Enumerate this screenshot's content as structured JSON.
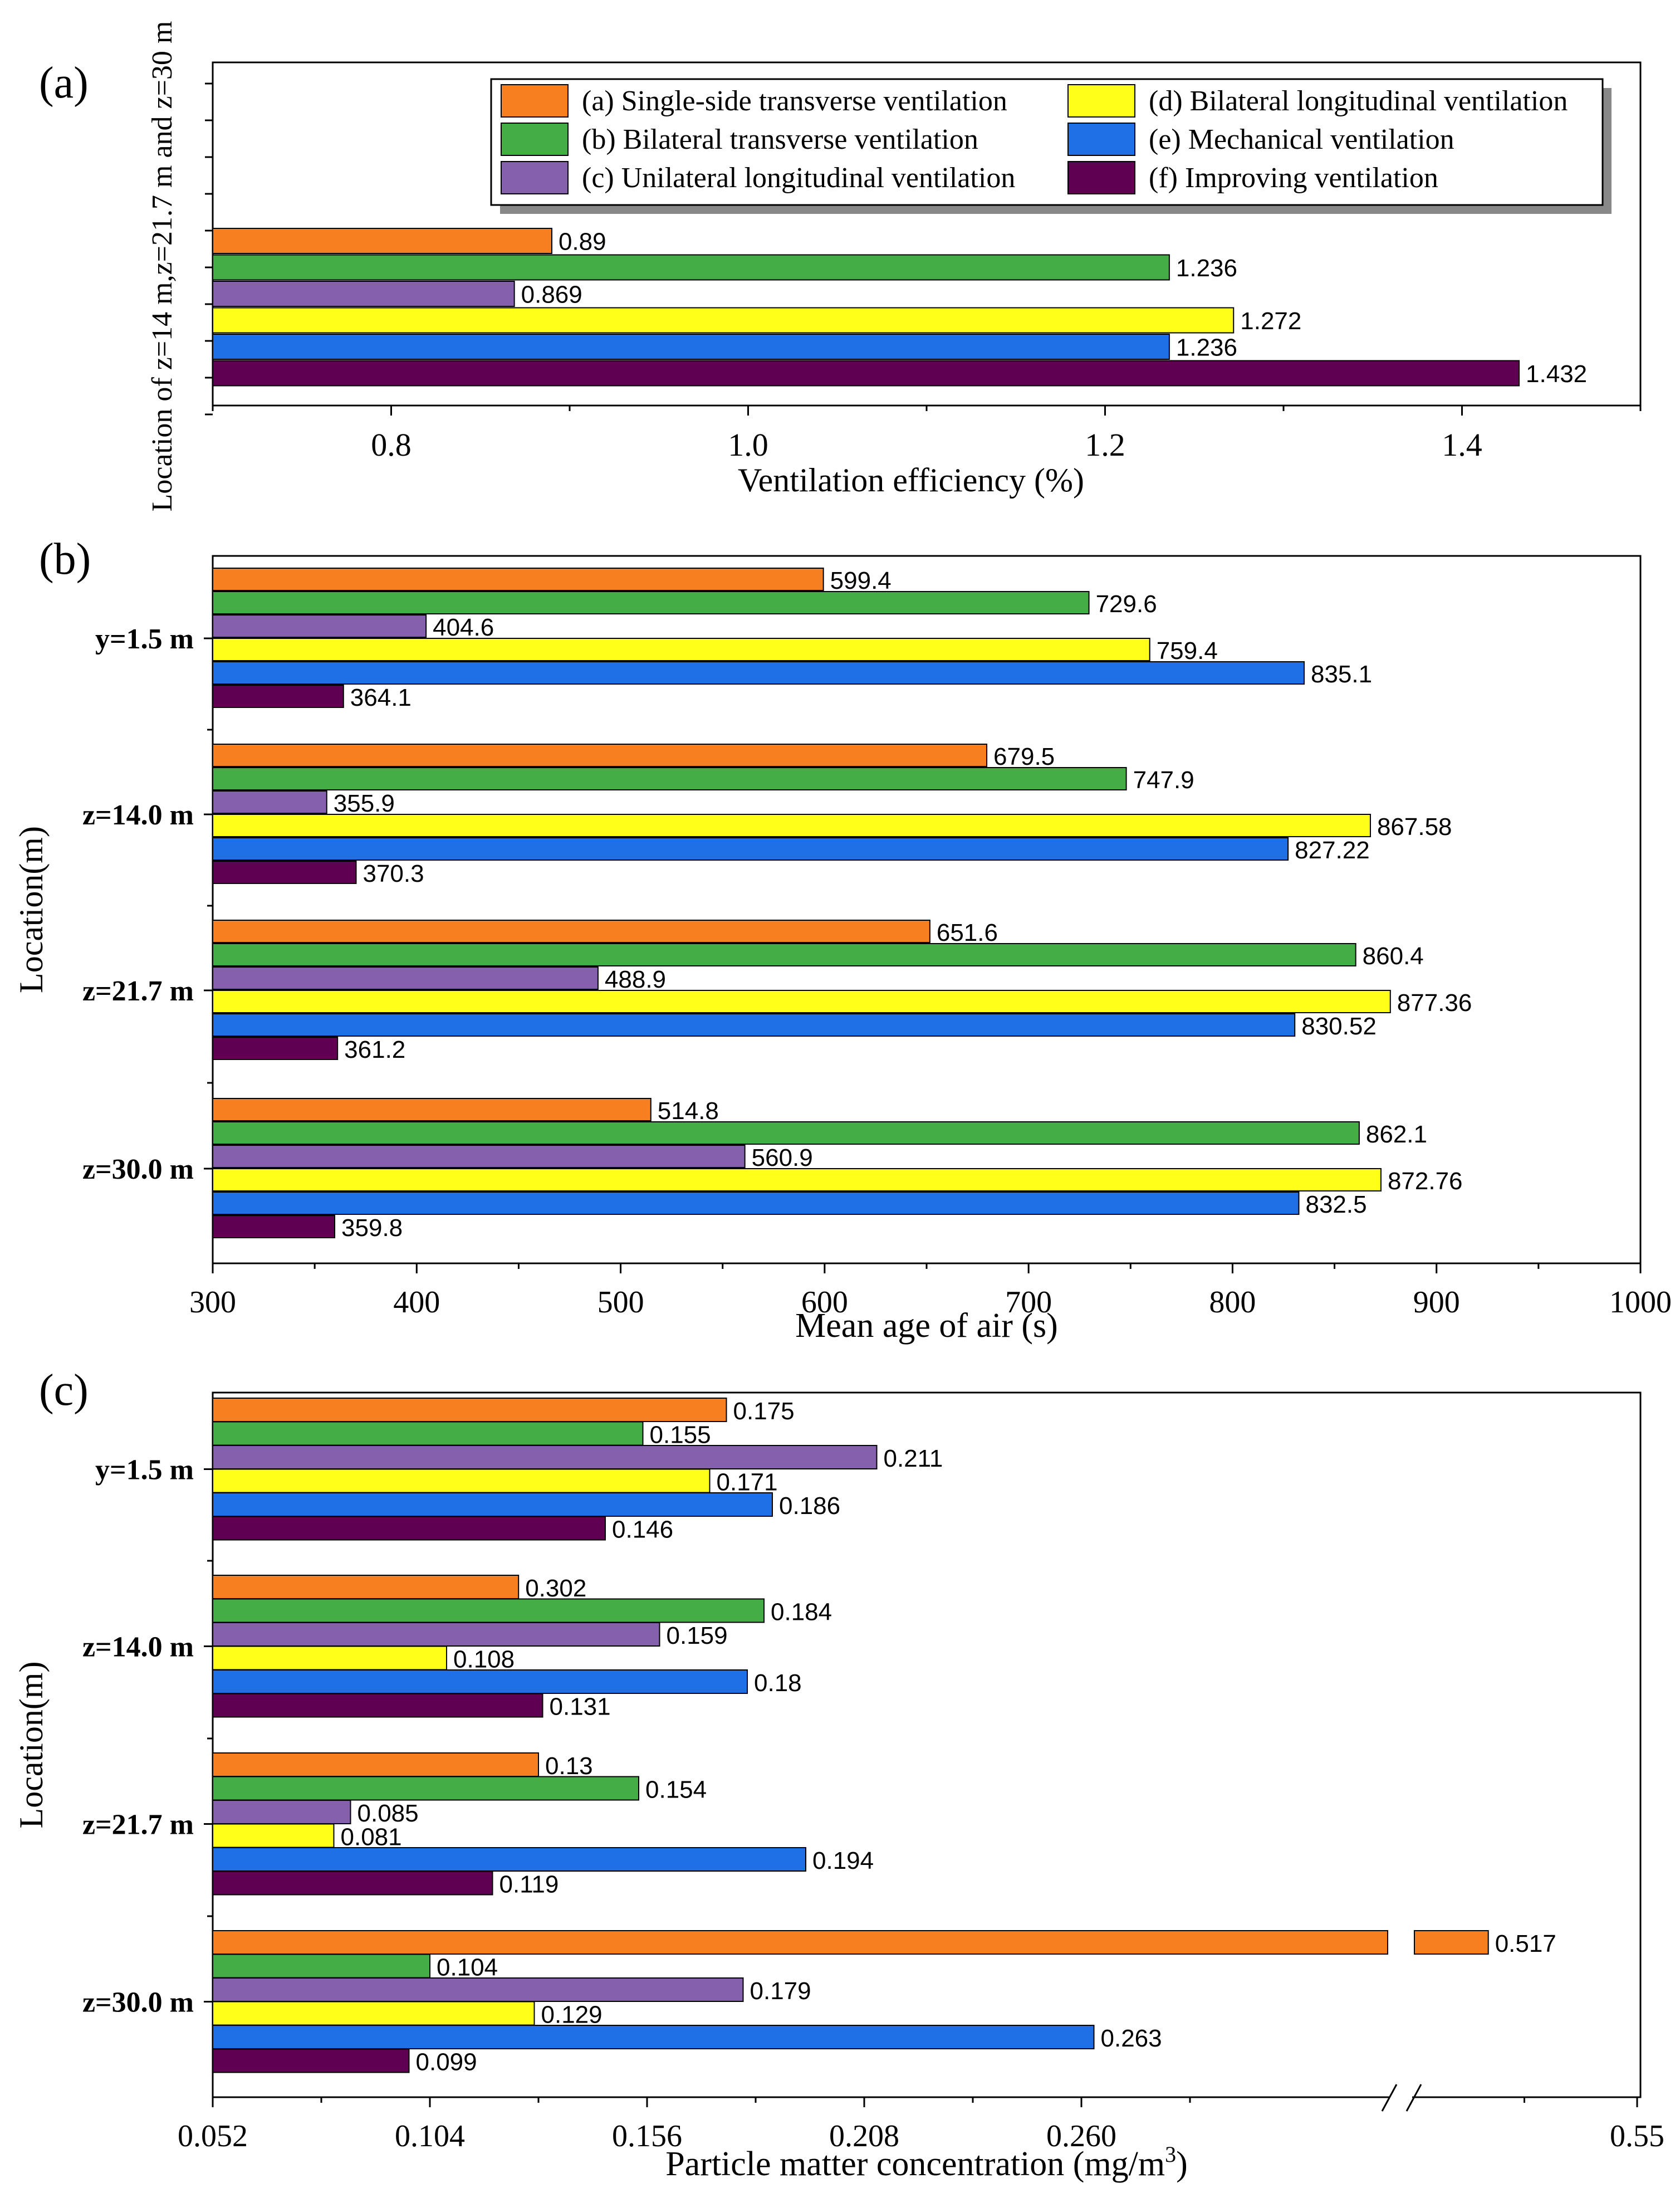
{
  "series_names": [
    "(a) Single-side transverse ventilation",
    "(b) Bilateral transverse ventilation",
    "(c) Unilateral longitudinal ventilation",
    "(d) Bilateral longitudinal ventilation",
    "(e) Mechanical ventilation",
    "(f) Improving ventilation"
  ],
  "colors": [
    "#f77f1f",
    "#45ad45",
    "#8460ad",
    "#ffff1a",
    "#1f6fe6",
    "#5f0052"
  ],
  "chart_data": [
    {
      "type": "bar",
      "orientation": "horizontal",
      "panel_label": "(a)",
      "xlabel": "Ventilation efficiency (%)",
      "ylabel": "Location of z=14 m,z=21.7 m and z=30 m",
      "xlim": [
        0.7,
        1.5
      ],
      "xticks": [
        "0.8",
        "1.0",
        "1.2",
        "1.4"
      ],
      "categories": [
        ""
      ],
      "series": [
        {
          "name": "(a) Single-side transverse ventilation",
          "values": [
            0.89
          ],
          "labels": [
            "0.89"
          ]
        },
        {
          "name": "(b) Bilateral transverse ventilation",
          "values": [
            1.236
          ],
          "labels": [
            "1.236"
          ]
        },
        {
          "name": "(c) Unilateral longitudinal ventilation",
          "values": [
            0.869
          ],
          "labels": [
            "0.869"
          ]
        },
        {
          "name": "(d) Bilateral longitudinal ventilation",
          "values": [
            1.272
          ],
          "labels": [
            "1.272"
          ]
        },
        {
          "name": "(e) Mechanical ventilation",
          "values": [
            1.236
          ],
          "labels": [
            "1.236"
          ]
        },
        {
          "name": "(f) Improving ventilation",
          "values": [
            1.432
          ],
          "labels": [
            "1.432"
          ]
        }
      ],
      "legend": "top-right"
    },
    {
      "type": "bar",
      "orientation": "horizontal",
      "panel_label": "(b)",
      "xlabel": "Mean age of air (s)",
      "ylabel": "Location(m)",
      "xlim": [
        300,
        1000
      ],
      "xticks": [
        "300",
        "400",
        "500",
        "600",
        "700",
        "800",
        "900",
        "1000"
      ],
      "categories": [
        "y=1.5 m",
        "z=14.0 m",
        "z=21.7 m",
        "z=30.0 m"
      ],
      "series": [
        {
          "name": "(a) Single-side transverse ventilation",
          "values": [
            599.4,
            679.5,
            651.6,
            514.8
          ],
          "labels": [
            "599.4",
            "679.5",
            "651.6",
            "514.8"
          ]
        },
        {
          "name": "(b) Bilateral transverse ventilation",
          "values": [
            729.6,
            747.9,
            860.4,
            862.1
          ],
          "labels": [
            "729.6",
            "747.9",
            "860.4",
            "862.1"
          ]
        },
        {
          "name": "(c) Unilateral longitudinal ventilation",
          "values": [
            404.6,
            355.9,
            488.9,
            560.9
          ],
          "labels": [
            "404.6",
            "355.9",
            "488.9",
            "560.9"
          ]
        },
        {
          "name": "(d) Bilateral longitudinal ventilation",
          "values": [
            759.4,
            867.58,
            877.36,
            872.76
          ],
          "labels": [
            "759.4",
            "867.58",
            "877.36",
            "872.76"
          ]
        },
        {
          "name": "(e) Mechanical ventilation",
          "values": [
            835.1,
            827.22,
            830.52,
            832.5
          ],
          "labels": [
            "835.1",
            "827.22",
            "830.52",
            "832.5"
          ]
        },
        {
          "name": "(f) Improving ventilation",
          "values": [
            364.1,
            370.3,
            361.2,
            359.8
          ],
          "labels": [
            "364.1",
            "370.3",
            "361.2",
            "359.8"
          ]
        }
      ]
    },
    {
      "type": "bar",
      "orientation": "horizontal",
      "panel_label": "(c)",
      "xlabel": "Particle matter concentration (mg/m",
      "xlabel_sup": "3",
      "xlabel_end": ")",
      "ylabel": "Location(m)",
      "xlim": [
        0.052,
        0.55
      ],
      "axis_break": [
        0.3,
        0.5
      ],
      "xticks": [
        "0.052",
        "0.104",
        "0.156",
        "0.208",
        "0.260",
        "0.55"
      ],
      "xtick_values": [
        0.052,
        0.104,
        0.156,
        0.208,
        0.26,
        0.55
      ],
      "categories": [
        "y=1.5 m",
        "z=14.0 m",
        "z=21.7 m",
        "z=30.0 m"
      ],
      "series": [
        {
          "name": "(a) Single-side transverse ventilation",
          "values": [
            0.175,
            0.302,
            0.13,
            0.517
          ],
          "labels": [
            "0.175",
            "0.302",
            "0.13",
            "0.517"
          ]
        },
        {
          "name": "(b) Bilateral transverse ventilation",
          "values": [
            0.155,
            0.184,
            0.154,
            0.104
          ],
          "labels": [
            "0.155",
            "0.184",
            "0.154",
            "0.104"
          ]
        },
        {
          "name": "(c) Unilateral longitudinal ventilation",
          "values": [
            0.211,
            0.159,
            0.085,
            0.179
          ],
          "labels": [
            "0.211",
            "0.159",
            "0.085",
            "0.179"
          ]
        },
        {
          "name": "(d) Bilateral longitudinal ventilation",
          "values": [
            0.171,
            0.108,
            0.081,
            0.129
          ],
          "labels": [
            "0.171",
            "0.108",
            "0.081",
            "0.129"
          ]
        },
        {
          "name": "(e) Mechanical ventilation",
          "values": [
            0.186,
            0.18,
            0.194,
            0.263
          ],
          "labels": [
            "0.186",
            "0.18",
            "0.194",
            "0.263"
          ]
        },
        {
          "name": "(f) Improving ventilation",
          "values": [
            0.146,
            0.131,
            0.119,
            0.099
          ],
          "labels": [
            "0.146",
            "0.131",
            "0.119",
            "0.099"
          ]
        }
      ]
    }
  ]
}
